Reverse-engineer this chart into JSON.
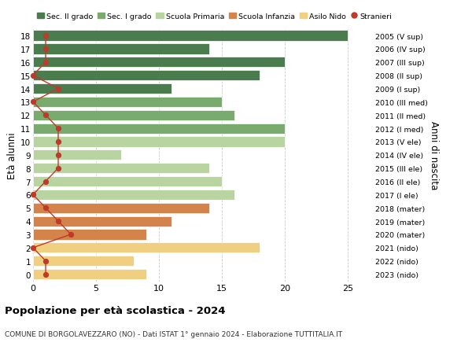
{
  "ages": [
    18,
    17,
    16,
    15,
    14,
    13,
    12,
    11,
    10,
    9,
    8,
    7,
    6,
    5,
    4,
    3,
    2,
    1,
    0
  ],
  "anni_nascita": [
    "2005 (V sup)",
    "2006 (IV sup)",
    "2007 (III sup)",
    "2008 (II sup)",
    "2009 (I sup)",
    "2010 (III med)",
    "2011 (II med)",
    "2012 (I med)",
    "2013 (V ele)",
    "2014 (IV ele)",
    "2015 (III ele)",
    "2016 (II ele)",
    "2017 (I ele)",
    "2018 (mater)",
    "2019 (mater)",
    "2020 (mater)",
    "2021 (nido)",
    "2022 (nido)",
    "2023 (nido)"
  ],
  "bar_values": [
    25,
    14,
    20,
    18,
    11,
    15,
    16,
    20,
    20,
    7,
    14,
    15,
    16,
    14,
    11,
    9,
    18,
    8,
    9
  ],
  "stranieri": [
    1,
    1,
    1,
    0,
    2,
    0,
    1,
    2,
    2,
    2,
    2,
    1,
    0,
    1,
    2,
    3,
    0,
    1,
    1
  ],
  "bar_colors": [
    "#4a7c4e",
    "#4a7c4e",
    "#4a7c4e",
    "#4a7c4e",
    "#4a7c4e",
    "#7aab6e",
    "#7aab6e",
    "#7aab6e",
    "#b8d4a0",
    "#b8d4a0",
    "#b8d4a0",
    "#b8d4a0",
    "#b8d4a0",
    "#d4834a",
    "#d4834a",
    "#d4834a",
    "#f0d080",
    "#f0d080",
    "#f0d080"
  ],
  "legend_labels": [
    "Sec. II grado",
    "Sec. I grado",
    "Scuola Primaria",
    "Scuola Infanzia",
    "Asilo Nido",
    "Stranieri"
  ],
  "legend_colors": [
    "#4a7c4e",
    "#7aab6e",
    "#b8d4a0",
    "#d4834a",
    "#f0d080",
    "#c0392b"
  ],
  "stranieri_color": "#c0392b",
  "title": "Popolazione per età scolastica - 2024",
  "subtitle": "COMUNE DI BORGOLAVEZZARO (NO) - Dati ISTAT 1° gennaio 2024 - Elaborazione TUTTITALIA.IT",
  "ylabel": "Età alunni",
  "ylabel2": "Anni di nascita",
  "xlabel_ticks": [
    0,
    5,
    10,
    15,
    20,
    25
  ],
  "xlim": [
    0,
    27
  ],
  "background_color": "#ffffff",
  "grid_color": "#cccccc"
}
